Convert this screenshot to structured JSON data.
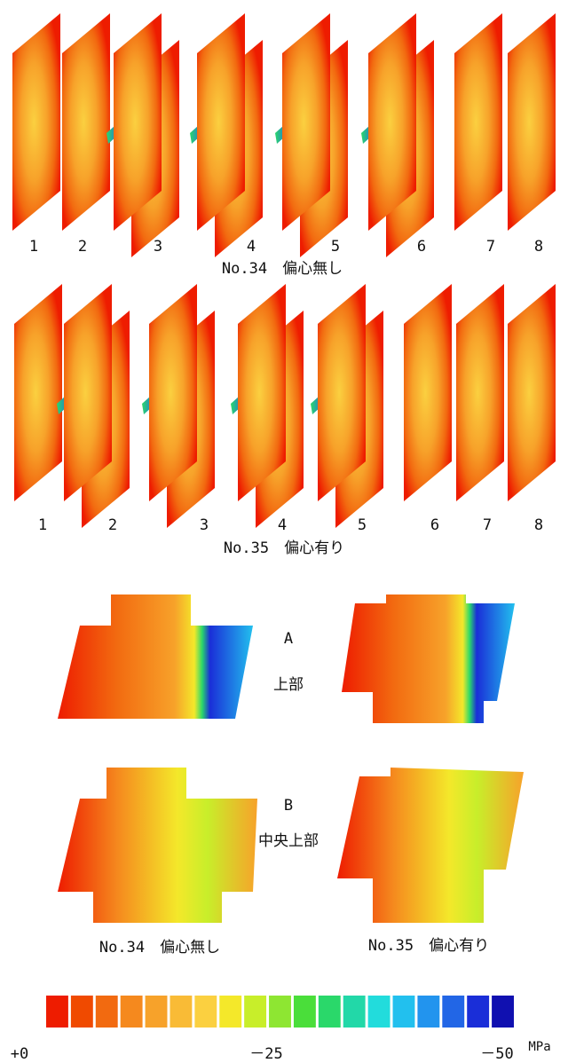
{
  "row1": {
    "labels": [
      "1",
      "2",
      "3",
      "4",
      "5",
      "6",
      "7",
      "8"
    ],
    "caption": "No.34　偏心無し"
  },
  "row2": {
    "labels": [
      "1",
      "2",
      "3",
      "4",
      "5",
      "6",
      "7",
      "8"
    ],
    "caption": "No.35　偏心有り"
  },
  "section_a": {
    "letter": "A",
    "label": "上部"
  },
  "section_b": {
    "letter": "B",
    "label": "中央上部"
  },
  "bottom_captions": [
    "No.34　偏心無し",
    "No.35　偏心有り"
  ],
  "colorbar": {
    "colors": [
      "#ee1c00",
      "#f04a00",
      "#f26a10",
      "#f5891e",
      "#f7a22a",
      "#f9bb36",
      "#fbd040",
      "#f4e82a",
      "#c8ee2a",
      "#8ee632",
      "#4ade3a",
      "#2ad86a",
      "#22d8a8",
      "#22dcdc",
      "#22c0ee",
      "#2294ee",
      "#2266e6",
      "#1a2ed8",
      "#1010b0"
    ],
    "labels": [
      "+0",
      "－25",
      "－50"
    ],
    "unit": "MPa"
  }
}
